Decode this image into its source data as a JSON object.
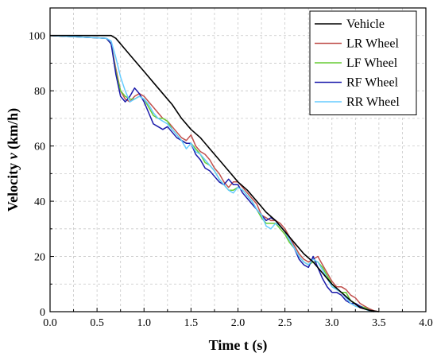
{
  "chart_data": {
    "type": "line",
    "xlabel": "Time t (s)",
    "ylabel_prefix": "Velocity ",
    "ylabel_symbol": "v",
    "ylabel_suffix": " (km/h)",
    "xlim": [
      0.0,
      4.0
    ],
    "ylim": [
      0,
      110
    ],
    "xticks": [
      "0.0",
      "0.5",
      "1.0",
      "1.5",
      "2.0",
      "2.5",
      "3.0",
      "3.5",
      "4.0"
    ],
    "yticks": [
      "0",
      "20",
      "40",
      "60",
      "80",
      "100"
    ],
    "xtick_values": [
      0,
      0.5,
      1.0,
      1.5,
      2.0,
      2.5,
      3.0,
      3.5,
      4.0
    ],
    "ytick_values": [
      0,
      20,
      40,
      60,
      80,
      100
    ],
    "grid": true,
    "legend_position": "top-right",
    "series": [
      {
        "name": "Vehicle",
        "color": "#000000",
        "points": [
          [
            0,
            100
          ],
          [
            0.65,
            100
          ],
          [
            0.7,
            99
          ],
          [
            0.8,
            95
          ],
          [
            0.9,
            91
          ],
          [
            1.0,
            87
          ],
          [
            1.1,
            83
          ],
          [
            1.2,
            79
          ],
          [
            1.3,
            75
          ],
          [
            1.4,
            70
          ],
          [
            1.5,
            66
          ],
          [
            1.6,
            63
          ],
          [
            1.7,
            59
          ],
          [
            1.8,
            55
          ],
          [
            1.9,
            51
          ],
          [
            2.0,
            47
          ],
          [
            2.1,
            44
          ],
          [
            2.2,
            40
          ],
          [
            2.3,
            36
          ],
          [
            2.4,
            33
          ],
          [
            2.5,
            29
          ],
          [
            2.6,
            25
          ],
          [
            2.7,
            21
          ],
          [
            2.8,
            18
          ],
          [
            2.9,
            14
          ],
          [
            3.0,
            10
          ],
          [
            3.1,
            7
          ],
          [
            3.2,
            4
          ],
          [
            3.3,
            1.5
          ],
          [
            3.4,
            0.5
          ],
          [
            3.5,
            0
          ]
        ]
      },
      {
        "name": "LR Wheel",
        "color": "#c0504d",
        "points": [
          [
            0,
            100
          ],
          [
            0.6,
            99
          ],
          [
            0.65,
            97
          ],
          [
            0.7,
            88
          ],
          [
            0.75,
            80
          ],
          [
            0.8,
            77
          ],
          [
            0.85,
            76
          ],
          [
            0.9,
            78
          ],
          [
            0.95,
            79
          ],
          [
            1.0,
            78
          ],
          [
            1.05,
            76
          ],
          [
            1.1,
            74
          ],
          [
            1.15,
            72
          ],
          [
            1.2,
            70
          ],
          [
            1.25,
            69
          ],
          [
            1.3,
            67
          ],
          [
            1.35,
            65
          ],
          [
            1.4,
            63
          ],
          [
            1.45,
            62
          ],
          [
            1.5,
            64
          ],
          [
            1.55,
            60
          ],
          [
            1.6,
            58
          ],
          [
            1.65,
            57
          ],
          [
            1.7,
            55
          ],
          [
            1.75,
            52
          ],
          [
            1.8,
            50
          ],
          [
            1.85,
            47
          ],
          [
            1.9,
            45
          ],
          [
            1.95,
            47
          ],
          [
            2.0,
            47
          ],
          [
            2.05,
            45
          ],
          [
            2.1,
            43
          ],
          [
            2.15,
            41
          ],
          [
            2.2,
            39
          ],
          [
            2.25,
            35
          ],
          [
            2.3,
            34
          ],
          [
            2.35,
            33
          ],
          [
            2.4,
            33
          ],
          [
            2.45,
            32
          ],
          [
            2.5,
            30
          ],
          [
            2.55,
            27
          ],
          [
            2.6,
            24
          ],
          [
            2.65,
            21
          ],
          [
            2.7,
            19
          ],
          [
            2.75,
            18
          ],
          [
            2.8,
            19
          ],
          [
            2.85,
            20
          ],
          [
            2.9,
            17
          ],
          [
            2.95,
            14
          ],
          [
            3.0,
            11
          ],
          [
            3.05,
            9
          ],
          [
            3.1,
            9
          ],
          [
            3.15,
            8
          ],
          [
            3.2,
            6
          ],
          [
            3.25,
            5
          ],
          [
            3.3,
            3
          ],
          [
            3.35,
            2
          ],
          [
            3.4,
            1
          ],
          [
            3.45,
            0.3
          ],
          [
            3.5,
            0
          ]
        ]
      },
      {
        "name": "LF Wheel",
        "color": "#66cc33",
        "points": [
          [
            0,
            100
          ],
          [
            0.6,
            99
          ],
          [
            0.65,
            97
          ],
          [
            0.7,
            87
          ],
          [
            0.75,
            80
          ],
          [
            0.8,
            78
          ],
          [
            0.85,
            77
          ],
          [
            0.9,
            77
          ],
          [
            0.95,
            78
          ],
          [
            1.0,
            77
          ],
          [
            1.05,
            74
          ],
          [
            1.1,
            71
          ],
          [
            1.15,
            70
          ],
          [
            1.2,
            70
          ],
          [
            1.25,
            69
          ],
          [
            1.3,
            66
          ],
          [
            1.35,
            64
          ],
          [
            1.4,
            62
          ],
          [
            1.45,
            61
          ],
          [
            1.5,
            61
          ],
          [
            1.55,
            59
          ],
          [
            1.6,
            57
          ],
          [
            1.65,
            54
          ],
          [
            1.7,
            53
          ],
          [
            1.75,
            51
          ],
          [
            1.8,
            48
          ],
          [
            1.85,
            46
          ],
          [
            1.9,
            44
          ],
          [
            1.95,
            44
          ],
          [
            2.0,
            45
          ],
          [
            2.05,
            44
          ],
          [
            2.1,
            42
          ],
          [
            2.15,
            40
          ],
          [
            2.2,
            37
          ],
          [
            2.25,
            34
          ],
          [
            2.3,
            32
          ],
          [
            2.35,
            32
          ],
          [
            2.4,
            32
          ],
          [
            2.45,
            30
          ],
          [
            2.5,
            28
          ],
          [
            2.55,
            25
          ],
          [
            2.6,
            23
          ],
          [
            2.65,
            20
          ],
          [
            2.7,
            18
          ],
          [
            2.75,
            17
          ],
          [
            2.8,
            18
          ],
          [
            2.85,
            18
          ],
          [
            2.9,
            16
          ],
          [
            2.95,
            13
          ],
          [
            3.0,
            10
          ],
          [
            3.05,
            8
          ],
          [
            3.1,
            7
          ],
          [
            3.15,
            7
          ],
          [
            3.2,
            4
          ],
          [
            3.25,
            3
          ],
          [
            3.3,
            2
          ],
          [
            3.35,
            1.5
          ],
          [
            3.4,
            0.5
          ],
          [
            3.45,
            0
          ]
        ]
      },
      {
        "name": "RF Wheel",
        "color": "#1a1aaa",
        "points": [
          [
            0,
            100
          ],
          [
            0.6,
            99
          ],
          [
            0.65,
            97
          ],
          [
            0.7,
            86
          ],
          [
            0.75,
            78
          ],
          [
            0.8,
            76
          ],
          [
            0.85,
            78
          ],
          [
            0.9,
            81
          ],
          [
            0.95,
            79
          ],
          [
            1.0,
            76
          ],
          [
            1.05,
            72
          ],
          [
            1.1,
            68
          ],
          [
            1.15,
            67
          ],
          [
            1.2,
            66
          ],
          [
            1.25,
            67
          ],
          [
            1.3,
            65
          ],
          [
            1.35,
            63
          ],
          [
            1.4,
            62
          ],
          [
            1.45,
            61
          ],
          [
            1.5,
            61
          ],
          [
            1.55,
            57
          ],
          [
            1.6,
            55
          ],
          [
            1.65,
            52
          ],
          [
            1.7,
            51
          ],
          [
            1.75,
            49
          ],
          [
            1.8,
            47
          ],
          [
            1.85,
            46
          ],
          [
            1.9,
            48
          ],
          [
            1.95,
            46
          ],
          [
            2.0,
            46
          ],
          [
            2.05,
            43
          ],
          [
            2.1,
            41
          ],
          [
            2.15,
            39
          ],
          [
            2.2,
            37
          ],
          [
            2.25,
            35
          ],
          [
            2.3,
            33
          ],
          [
            2.35,
            34
          ],
          [
            2.4,
            33
          ],
          [
            2.45,
            31
          ],
          [
            2.5,
            29
          ],
          [
            2.55,
            26
          ],
          [
            2.6,
            23
          ],
          [
            2.65,
            19
          ],
          [
            2.7,
            17
          ],
          [
            2.75,
            16
          ],
          [
            2.8,
            20
          ],
          [
            2.85,
            16
          ],
          [
            2.9,
            12
          ],
          [
            2.95,
            9
          ],
          [
            3.0,
            7
          ],
          [
            3.05,
            7
          ],
          [
            3.1,
            6
          ],
          [
            3.15,
            4
          ],
          [
            3.2,
            3
          ],
          [
            3.25,
            3
          ],
          [
            3.3,
            2
          ],
          [
            3.35,
            1
          ],
          [
            3.4,
            0.5
          ],
          [
            3.45,
            0
          ]
        ]
      },
      {
        "name": "RR Wheel",
        "color": "#66ccff",
        "points": [
          [
            0,
            100
          ],
          [
            0.6,
            99
          ],
          [
            0.65,
            98
          ],
          [
            0.7,
            92
          ],
          [
            0.75,
            85
          ],
          [
            0.8,
            80
          ],
          [
            0.85,
            76
          ],
          [
            0.9,
            77
          ],
          [
            0.95,
            78
          ],
          [
            1.0,
            77
          ],
          [
            1.05,
            75
          ],
          [
            1.1,
            72
          ],
          [
            1.15,
            70
          ],
          [
            1.2,
            69
          ],
          [
            1.25,
            68
          ],
          [
            1.3,
            66
          ],
          [
            1.35,
            64
          ],
          [
            1.4,
            62
          ],
          [
            1.45,
            59
          ],
          [
            1.5,
            61
          ],
          [
            1.55,
            58
          ],
          [
            1.6,
            57
          ],
          [
            1.65,
            55
          ],
          [
            1.7,
            53
          ],
          [
            1.75,
            51
          ],
          [
            1.8,
            48
          ],
          [
            1.85,
            46
          ],
          [
            1.9,
            44
          ],
          [
            1.95,
            43
          ],
          [
            2.0,
            45
          ],
          [
            2.05,
            44
          ],
          [
            2.1,
            42
          ],
          [
            2.15,
            40
          ],
          [
            2.2,
            37
          ],
          [
            2.25,
            35
          ],
          [
            2.3,
            31
          ],
          [
            2.35,
            30
          ],
          [
            2.4,
            32
          ],
          [
            2.45,
            31
          ],
          [
            2.5,
            29
          ],
          [
            2.55,
            26
          ],
          [
            2.6,
            23
          ],
          [
            2.65,
            20
          ],
          [
            2.7,
            18
          ],
          [
            2.75,
            17
          ],
          [
            2.8,
            19
          ],
          [
            2.85,
            18
          ],
          [
            2.9,
            15
          ],
          [
            2.95,
            12
          ],
          [
            3.0,
            9
          ],
          [
            3.05,
            8
          ],
          [
            3.1,
            7
          ],
          [
            3.15,
            5
          ],
          [
            3.2,
            3
          ],
          [
            3.25,
            2
          ],
          [
            3.3,
            1.5
          ],
          [
            3.35,
            1
          ],
          [
            3.4,
            0.3
          ],
          [
            3.45,
            0
          ]
        ]
      }
    ]
  }
}
